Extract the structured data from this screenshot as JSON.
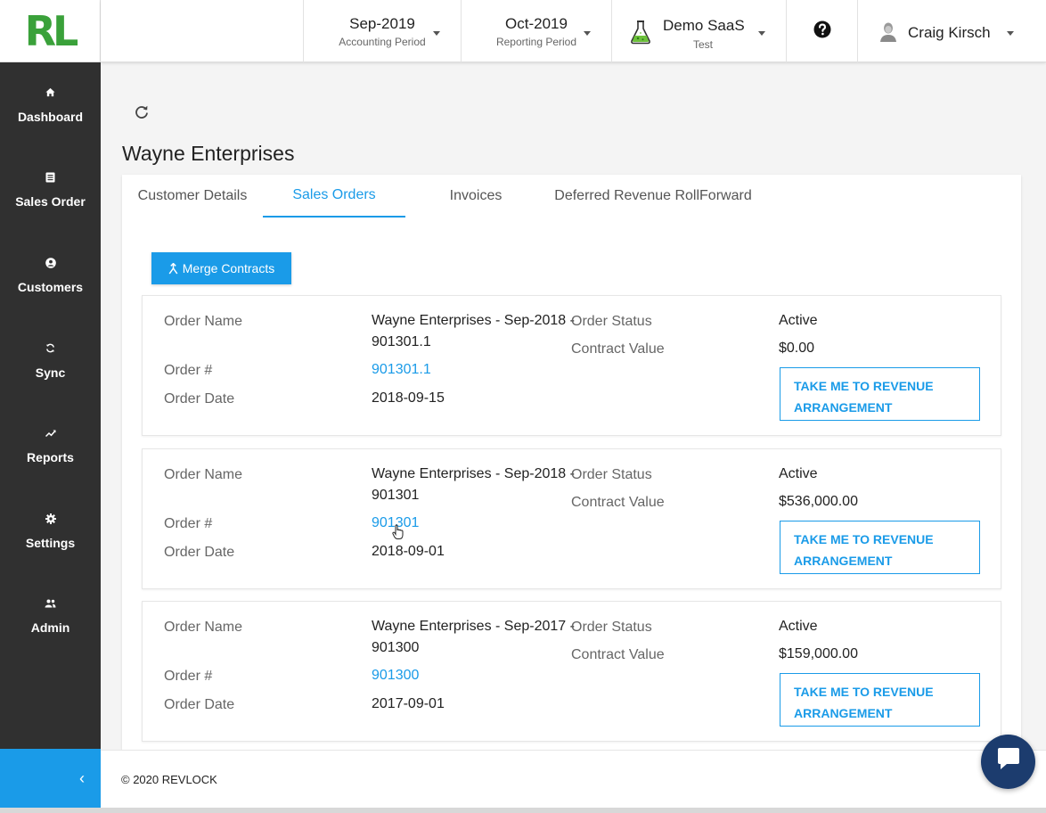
{
  "logo": {
    "text": "RL",
    "color": "#3aa13a"
  },
  "header": {
    "accounting_period": {
      "value": "Sep-2019",
      "label": "Accounting Period"
    },
    "reporting_period": {
      "value": "Oct-2019",
      "label": "Reporting Period"
    },
    "tenant": {
      "name": "Demo SaaS",
      "env": "Test",
      "icon": "flask-icon"
    },
    "help_icon": "help-icon",
    "user": {
      "name": "Craig Kirsch",
      "icon": "avatar-icon"
    }
  },
  "sidebar": {
    "items": [
      {
        "label": "Dashboard",
        "icon": "home-icon"
      },
      {
        "label": "Sales Order",
        "icon": "list-icon"
      },
      {
        "label": "Customers",
        "icon": "user-icon"
      },
      {
        "label": "Sync",
        "icon": "sync-icon"
      },
      {
        "label": "Reports",
        "icon": "trending-icon"
      },
      {
        "label": "Settings",
        "icon": "gear-icon"
      },
      {
        "label": "Admin",
        "icon": "users-icon"
      }
    ],
    "collapse_label": "‹"
  },
  "main": {
    "title": "Wayne Enterprises",
    "tabs": [
      {
        "label": "Customer Details",
        "active": false
      },
      {
        "label": "Sales Orders",
        "active": true
      },
      {
        "label": "Invoices",
        "active": false
      },
      {
        "label": "Deferred Revenue RollForward",
        "active": false
      }
    ],
    "merge_button": "Merge Contracts",
    "labels": {
      "order_name": "Order Name",
      "order_num": "Order #",
      "order_date": "Order Date",
      "order_status": "Order Status",
      "contract_value": "Contract Value"
    },
    "revenue_button": {
      "line1": "TAKE ME TO REVENUE",
      "line2": "ARRANGEMENT"
    },
    "orders": [
      {
        "name_line1": "Wayne Enterprises - Sep-2018 -",
        "name_line2": "901301.1",
        "number": "901301.1",
        "date": "2018-09-15",
        "status": "Active",
        "value": "$0.00"
      },
      {
        "name_line1": "Wayne Enterprises - Sep-2018 -",
        "name_line2": "901301",
        "number": "901301",
        "date": "2018-09-01",
        "status": "Active",
        "value": "$536,000.00"
      },
      {
        "name_line1": "Wayne Enterprises - Sep-2017 -",
        "name_line2": "901300",
        "number": "901300",
        "date": "2017-09-01",
        "status": "Active",
        "value": "$159,000.00"
      }
    ]
  },
  "footer": {
    "copyright": "© 2020 REVLOCK"
  },
  "colors": {
    "accent": "#1a9be8",
    "sidebar": "#303030",
    "chat": "#1c3c6e"
  }
}
